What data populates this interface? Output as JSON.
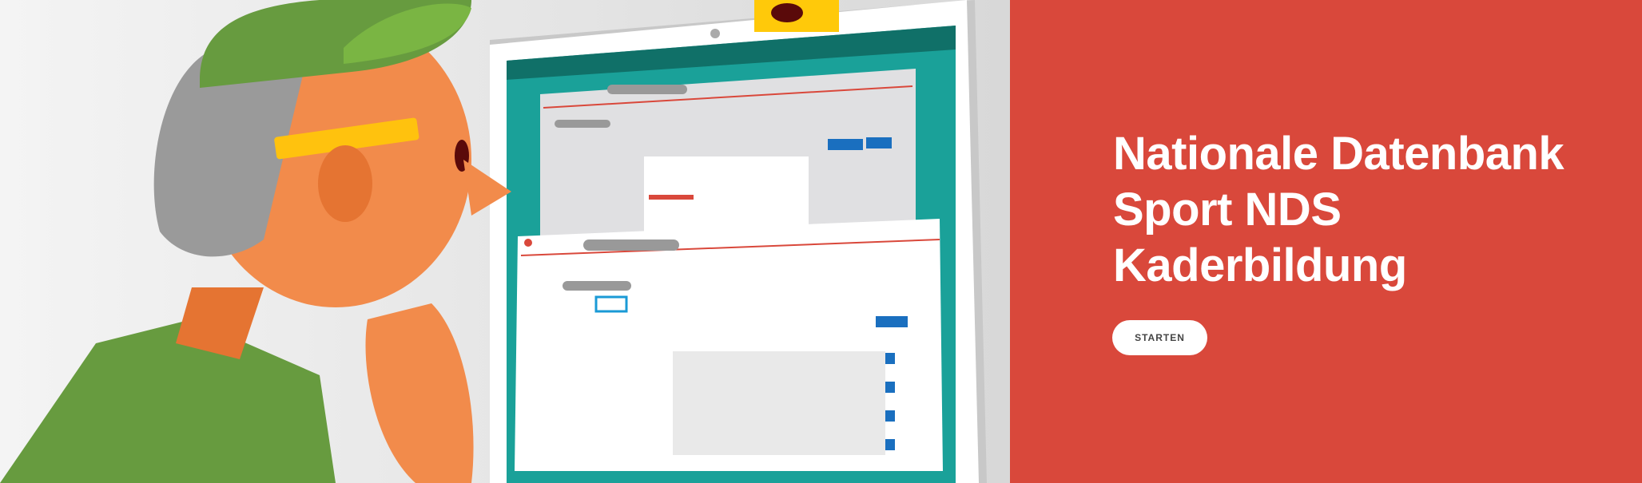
{
  "hero": {
    "title_lines": [
      "Nationale Datenbank",
      "Sport NDS",
      "Kaderbildung"
    ],
    "start_button_label": "STARTEN"
  },
  "colors": {
    "hero_background": "#d9483b",
    "button_background": "#ffffff",
    "screen_teal": "#1aa199",
    "cap_green": "#679b3f",
    "skin_orange": "#f28b4b",
    "accent_blue": "#1a6fbf",
    "pencil_yellow": "#ffc20e"
  },
  "illustration": {
    "subject": "person-with-pencil-looking-at-monitor",
    "icons": [
      "swiss-cross-logo"
    ]
  }
}
